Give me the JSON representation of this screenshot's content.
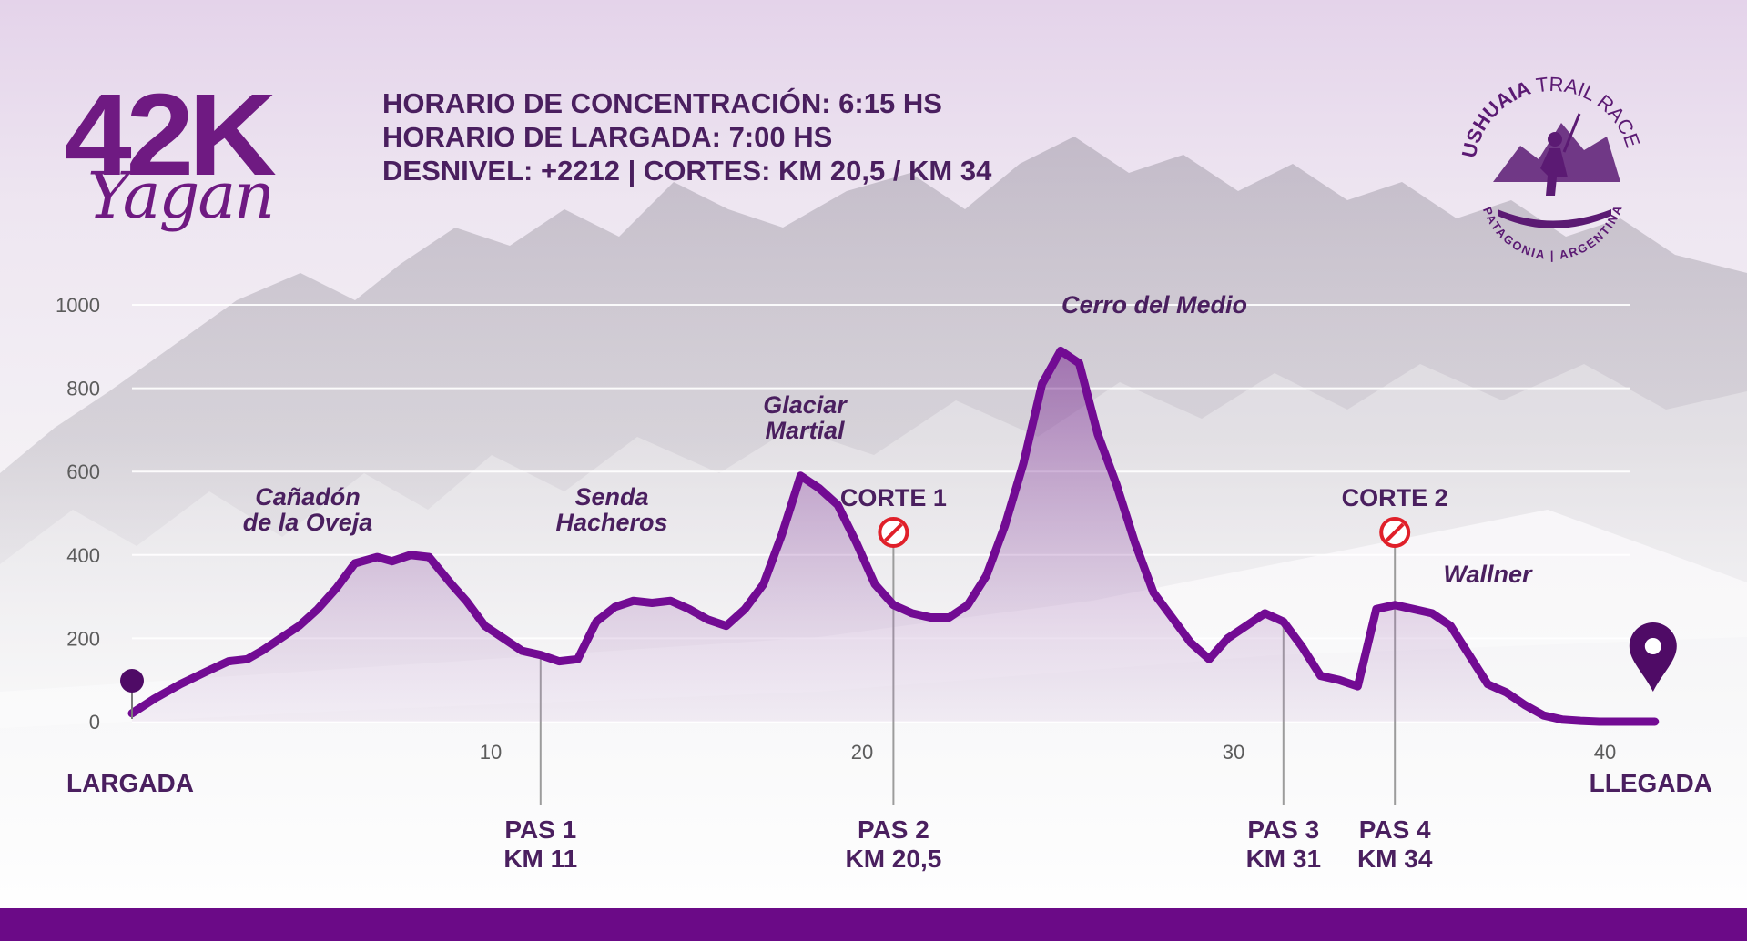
{
  "brand": {
    "title": "42K",
    "subtitle": "Yagan"
  },
  "info": {
    "line1": "HORARIO DE CONCENTRACIÓN: 6:15 HS",
    "line2": "HORARIO DE LARGADA: 7:00 HS",
    "line3": "DESNIVEL: +2212 | CORTES: KM 20,5 / KM 34"
  },
  "logo": {
    "name": "USHUAIA",
    "event": "TRAIL RACE",
    "place": "PATAGONIA | ARGENTINA"
  },
  "colors": {
    "primary": "#6b0a87",
    "line": "#720b93",
    "text": "#4a1f5f",
    "cut": "#e0202a",
    "axis": "#5c5c5c"
  },
  "chart_data": {
    "type": "area",
    "xlim": [
      0,
      41
    ],
    "ylim": [
      0,
      1000
    ],
    "x_ticks": [
      10,
      20,
      30,
      40
    ],
    "y_ticks": [
      0,
      200,
      400,
      600,
      800,
      1000
    ],
    "grid": true,
    "series": [
      {
        "x": [
          0.0,
          0.6,
          1.3,
          2.0,
          2.6,
          3.1,
          3.5,
          4.0,
          4.5,
          5.0,
          5.5,
          6.0,
          6.6,
          7.0,
          7.5,
          8.0,
          8.6,
          9.0,
          9.5,
          10.0,
          10.5,
          11.0,
          11.5,
          12.0,
          12.5,
          13.0,
          13.5,
          14.0,
          14.5,
          15.0,
          15.5,
          16.0,
          16.5,
          17.0,
          17.5,
          18.0,
          18.5,
          19.0,
          19.5,
          20.0,
          20.5,
          21.0,
          21.5,
          22.0,
          22.5,
          23.0,
          23.5,
          24.0,
          24.5,
          25.0,
          25.5,
          26.0,
          26.5,
          27.0,
          27.5,
          28.0,
          28.5,
          29.0,
          29.5,
          30.0,
          30.5,
          31.0,
          31.5,
          32.0,
          32.5,
          33.0,
          33.5,
          34.0,
          34.5,
          35.0,
          35.5,
          36.0,
          36.5,
          37.0,
          37.5,
          38.0,
          38.5,
          39.0,
          39.5,
          40.0,
          40.5,
          41.0
        ],
        "y": [
          20,
          55,
          90,
          120,
          145,
          150,
          170,
          200,
          230,
          270,
          320,
          380,
          395,
          385,
          400,
          395,
          330,
          290,
          230,
          200,
          170,
          160,
          145,
          150,
          240,
          275,
          290,
          285,
          290,
          270,
          245,
          230,
          270,
          330,
          450,
          590,
          560,
          520,
          430,
          330,
          280,
          260,
          250,
          250,
          280,
          350,
          470,
          620,
          810,
          890,
          860,
          690,
          570,
          430,
          310,
          250,
          190,
          150,
          200,
          230,
          260,
          240,
          180,
          110,
          100,
          85,
          270,
          280,
          270,
          260,
          230,
          160,
          90,
          70,
          40,
          15,
          5,
          2,
          0,
          0,
          0,
          0
        ]
      }
    ]
  },
  "peaks": [
    "Cañadón de la Oveja",
    "Senda Hacheros",
    "Glaciar Martial",
    "Cerro del Medio",
    "Wallner"
  ],
  "cuts": [
    {
      "label": "CORTE 1",
      "km": 20.5
    },
    {
      "label": "CORTE 2",
      "km": 34
    }
  ],
  "passes": [
    {
      "label": "PAS 1",
      "km_label": "KM 11",
      "km": 11
    },
    {
      "label": "PAS 2",
      "km_label": "KM 20,5",
      "km": 20.5
    },
    {
      "label": "PAS 3",
      "km_label": "KM 31",
      "km": 31
    },
    {
      "label": "PAS 4",
      "km_label": "KM 34",
      "km": 34
    }
  ],
  "start_label": "LARGADA",
  "finish_label": "LLEGADA"
}
